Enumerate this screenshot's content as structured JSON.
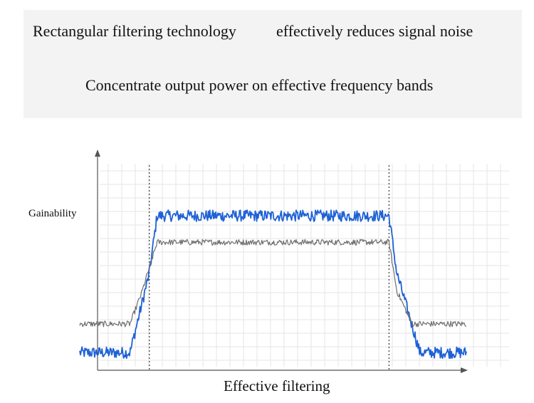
{
  "header": {
    "line1_left": "Rectangular filtering technology",
    "line1_right": "effectively reduces signal noise",
    "line2": "Concentrate output power on effective frequency bands"
  },
  "chart_data": {
    "type": "line",
    "title": "",
    "xlabel": "Effective filtering",
    "ylabel": "Gainability",
    "xlim": [
      0,
      100
    ],
    "ylim": [
      0,
      100
    ],
    "grid": true,
    "band_markers": [
      18,
      80
    ],
    "series": [
      {
        "color": "#1f62d6",
        "style": "noisy",
        "x": [
          0,
          13,
          18,
          20,
          80,
          82,
          88,
          100
        ],
        "values": [
          8,
          8,
          44,
          70,
          70,
          44,
          8,
          8
        ]
      },
      {
        "color": "#6e6e6e",
        "style": "noisy",
        "x": [
          0,
          13,
          16,
          20,
          80,
          82,
          86,
          100
        ],
        "values": [
          21,
          21,
          35,
          58,
          58,
          36,
          21,
          21
        ]
      }
    ]
  }
}
